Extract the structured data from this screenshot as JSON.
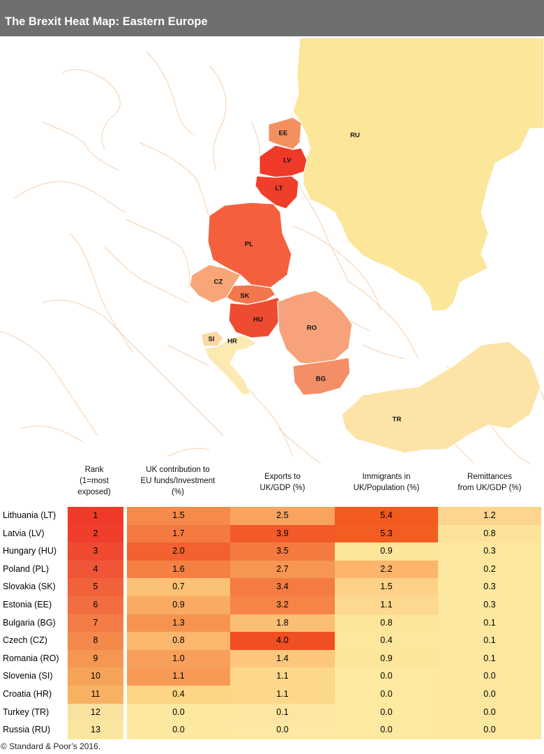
{
  "title": "The Brexit Heat Map: Eastern Europe",
  "map": {
    "labels": [
      "EE",
      "LV",
      "LT",
      "RU",
      "PL",
      "CZ",
      "SK",
      "HU",
      "RO",
      "SI",
      "HR",
      "BG",
      "TR"
    ],
    "colors": {
      "border_lines": "#f6cfae",
      "russia": "#fbe69a",
      "turkey": "#fde3a6",
      "estonia": "#f49060",
      "latvia": "#ef3a2a",
      "lithuania": "#ef3e2a",
      "poland": "#f4603e",
      "czech": "#f8a577",
      "slovakia": "#f3774c",
      "hungary": "#ee4c32",
      "romania": "#f8a27b",
      "bulgaria": "#f48e66",
      "slovenia": "#fcd7a2",
      "croatia": "#fdeab2"
    }
  },
  "chart_data": {
    "type": "table",
    "columns": [
      {
        "key": "rank",
        "lines": [
          "Rank",
          "(1=most",
          "exposed)"
        ]
      },
      {
        "key": "uk_contribution",
        "lines": [
          "UK contribution to",
          "EU funds/Investment",
          "(%)"
        ]
      },
      {
        "key": "exports",
        "lines": [
          "Exports to",
          "UK/GDP (%)"
        ]
      },
      {
        "key": "immigrants",
        "lines": [
          "Immigrants in",
          "UK/Population (%)"
        ]
      },
      {
        "key": "remittances",
        "lines": [
          "Remittances",
          "from UK/GDP (%)"
        ]
      }
    ],
    "rows": [
      {
        "country": "Lithuania (LT)",
        "rank": "1",
        "uk_contribution": "1.5",
        "exports": "2.5",
        "immigrants": "5.4",
        "remittances": "1.2"
      },
      {
        "country": "Latvia (LV)",
        "rank": "2",
        "uk_contribution": "1.7",
        "exports": "3.9",
        "immigrants": "5.3",
        "remittances": "0.8"
      },
      {
        "country": "Hungary (HU)",
        "rank": "3",
        "uk_contribution": "2.0",
        "exports": "3.5",
        "immigrants": "0.9",
        "remittances": "0.3"
      },
      {
        "country": "Poland (PL)",
        "rank": "4",
        "uk_contribution": "1.6",
        "exports": "2.7",
        "immigrants": "2.2",
        "remittances": "0.2"
      },
      {
        "country": "Slovakia (SK)",
        "rank": "5",
        "uk_contribution": "0.7",
        "exports": "3.4",
        "immigrants": "1.5",
        "remittances": "0.3"
      },
      {
        "country": "Estonia (EE)",
        "rank": "6",
        "uk_contribution": "0.9",
        "exports": "3.2",
        "immigrants": "1.1",
        "remittances": "0.3"
      },
      {
        "country": "Bulgaria (BG)",
        "rank": "7",
        "uk_contribution": "1.3",
        "exports": "1.8",
        "immigrants": "0.8",
        "remittances": "0.1"
      },
      {
        "country": "Czech (CZ)",
        "rank": "8",
        "uk_contribution": "0.8",
        "exports": "4.0",
        "immigrants": "0.4",
        "remittances": "0.1"
      },
      {
        "country": "Romania (RO)",
        "rank": "9",
        "uk_contribution": "1.0",
        "exports": "1.4",
        "immigrants": "0.9",
        "remittances": "0.1"
      },
      {
        "country": "Slovenia (SI)",
        "rank": "10",
        "uk_contribution": "1.1",
        "exports": "1.1",
        "immigrants": "0.0",
        "remittances": "0.0"
      },
      {
        "country": "Croatia (HR)",
        "rank": "11",
        "uk_contribution": "0.4",
        "exports": "1.1",
        "immigrants": "0.0",
        "remittances": "0.0"
      },
      {
        "country": "Turkey (TR)",
        "rank": "12",
        "uk_contribution": "0.0",
        "exports": "0.1",
        "immigrants": "0.0",
        "remittances": "0.0"
      },
      {
        "country": "Russia (RU)",
        "rank": "13",
        "uk_contribution": "0.0",
        "exports": "0.0",
        "immigrants": "0.0",
        "remittances": "0.0"
      }
    ],
    "colors": {
      "rank": [
        "#ef3a2a",
        "#ef3e2c",
        "#ef4a30",
        "#f05636",
        "#f1623b",
        "#f26e40",
        "#f37b46",
        "#f4894c",
        "#f59653",
        "#f6a35a",
        "#f7b162",
        "#f9e1a0",
        "#fbe6a0"
      ],
      "uk_contribution": [
        "#f58a4a",
        "#f47a42",
        "#f2612f",
        "#f48044",
        "#fbc277",
        "#f9ab63",
        "#f6944f",
        "#fab76d",
        "#f8a05b",
        "#f89a56",
        "#fcd585",
        "#fde8a0",
        "#fde8a0"
      ],
      "exports": [
        "#f8a35f",
        "#f35a2a",
        "#f47a40",
        "#f69652",
        "#f47c42",
        "#f58446",
        "#fbbe75",
        "#ef4f22",
        "#fcc77c",
        "#fdd88a",
        "#fdd88a",
        "#fee5a0",
        "#fee8a2"
      ],
      "immigrants": [
        "#f25a1e",
        "#f25e22",
        "#fde59a",
        "#fcb56a",
        "#fcd188",
        "#fdd88f",
        "#fde59a",
        "#fde79c",
        "#fde59a",
        "#fee9a0",
        "#fee9a0",
        "#fee9a0",
        "#fee9a0"
      ],
      "remittances": [
        "#fcd58e",
        "#fde39a",
        "#fde8a0",
        "#fde8a0",
        "#fde8a0",
        "#fde8a0",
        "#fde8a0",
        "#fde8a0",
        "#fde8a0",
        "#fde8a0",
        "#fde8a0",
        "#fde8a0",
        "#fde8a0"
      ]
    }
  },
  "footer": "© Standard & Poor’s 2016."
}
